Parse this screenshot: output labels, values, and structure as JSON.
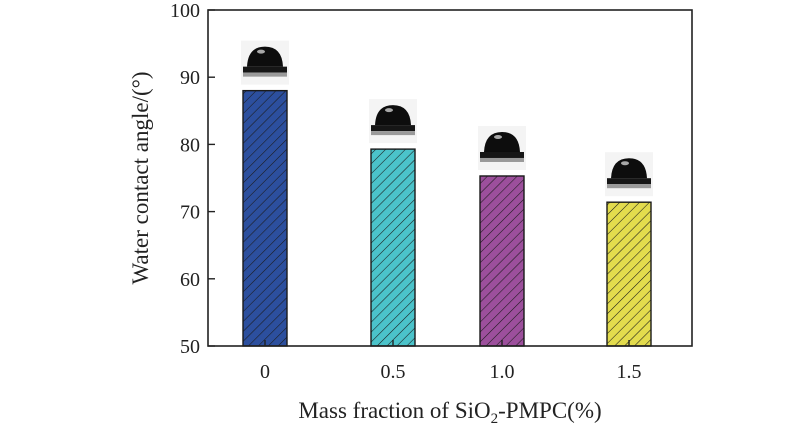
{
  "chart_data": {
    "type": "bar",
    "title": "",
    "xlabel_parts": [
      "Mass fraction of SiO",
      "2",
      "-PMPC(%)"
    ],
    "ylabel": "Water contact angle/(°)",
    "categories": [
      "0",
      "0.5",
      "1.0",
      "1.5"
    ],
    "values": [
      88,
      79.3,
      75.3,
      71.4
    ],
    "ylim": [
      50,
      100
    ],
    "yticks": [
      50,
      60,
      70,
      80,
      90,
      100
    ],
    "bar_colors": [
      "#2c4f9e",
      "#4bc3ca",
      "#9c4f9c",
      "#e3dc4d"
    ],
    "bar_hatch": "diagonal",
    "droplet_images": [
      "water-droplet-icon",
      "water-droplet-icon",
      "water-droplet-icon",
      "water-droplet-icon"
    ]
  }
}
